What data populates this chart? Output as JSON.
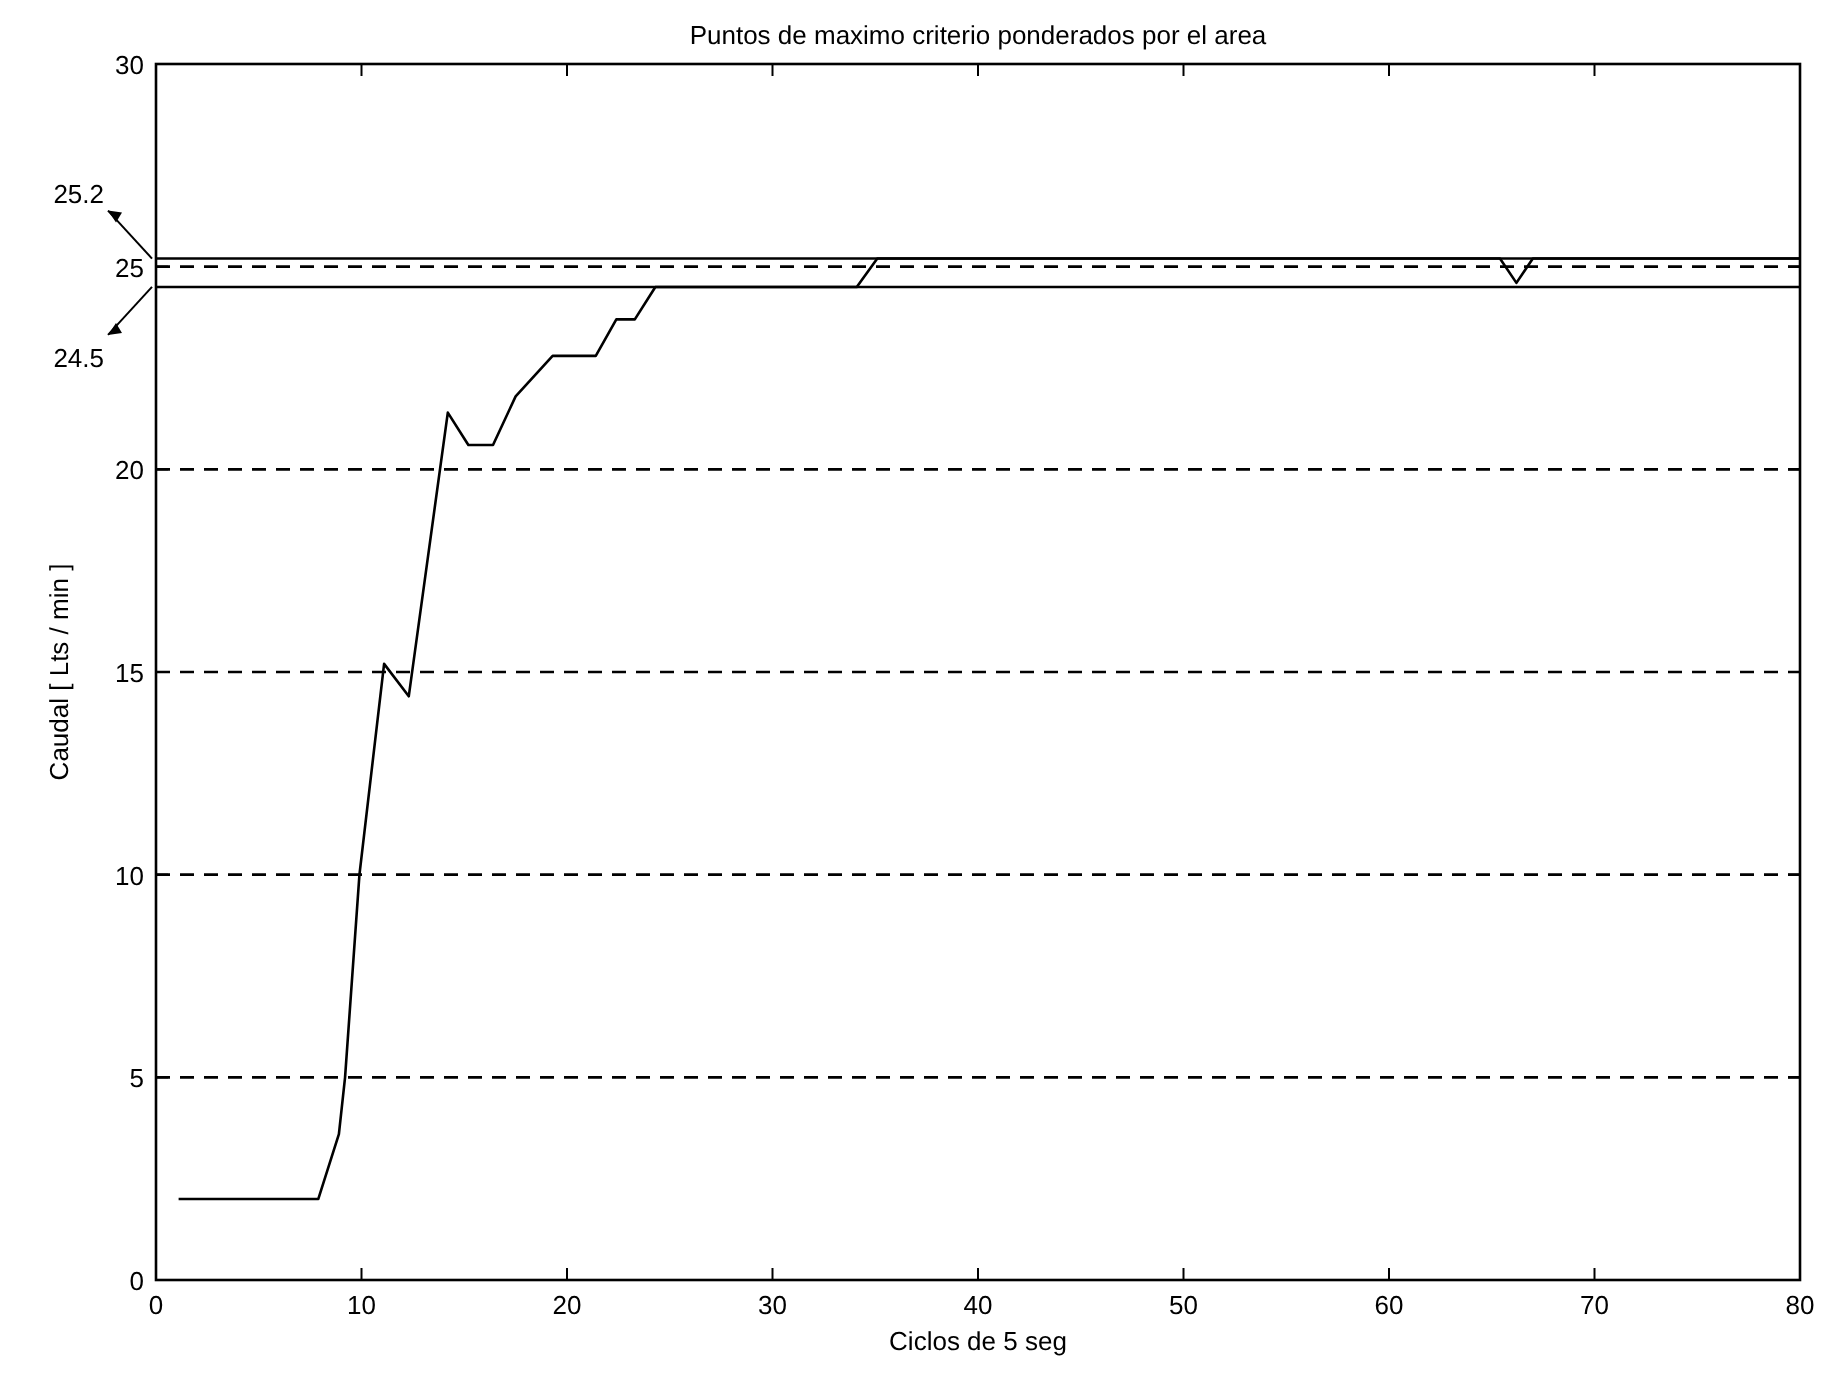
{
  "chart_data": {
    "type": "line",
    "title": "Puntos de maximo criterio ponderados por el area",
    "xlabel": "Ciclos de 5 seg",
    "ylabel": "Caudal [ Lts / min ]",
    "x": [
      1.1,
      7.9,
      8.9,
      9.2,
      9.9,
      11.1,
      12.3,
      14.2,
      15.2,
      16.4,
      17.5,
      19.3,
      21.4,
      22.4,
      23.3,
      24.3,
      34.1,
      35.1,
      65.4,
      66.2,
      67.0,
      80
    ],
    "series": [
      {
        "color": "#000000",
        "values": [
          2.0,
          2.0,
          3.6,
          5,
          10,
          15.2,
          14.4,
          21.4,
          20.6,
          20.6,
          21.8,
          22.8,
          22.8,
          23.7,
          23.7,
          24.5,
          24.5,
          25.2,
          25.2,
          24.6,
          25.2,
          25.2
        ]
      }
    ],
    "xlim": [
      0,
      80
    ],
    "ylim": [
      0,
      30
    ],
    "xticks": [
      0,
      10,
      20,
      30,
      40,
      50,
      60,
      70,
      80
    ],
    "yticks": [
      0,
      5,
      10,
      15,
      20,
      25,
      30
    ],
    "grid": "y",
    "line_style": "solid",
    "ref_lines": [
      {
        "axis": "y",
        "value": 25.2,
        "label": "25.2",
        "line_style": "solid"
      },
      {
        "axis": "y",
        "value": 24.5,
        "label": "24.5",
        "line_style": "solid"
      }
    ]
  }
}
